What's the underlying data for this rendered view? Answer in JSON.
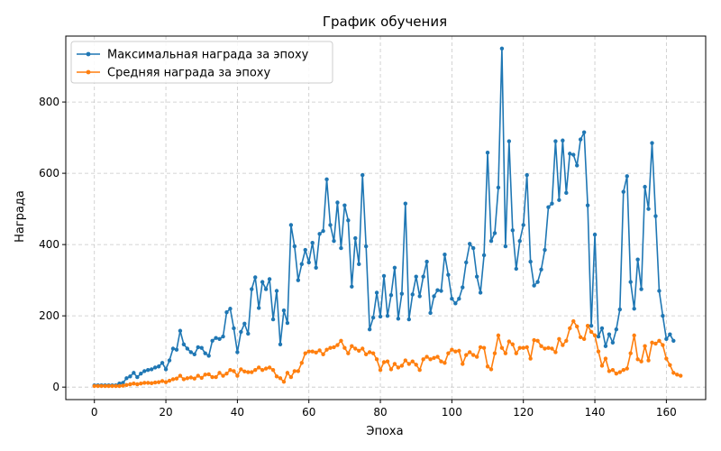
{
  "chart_data": {
    "type": "line",
    "title": "График обучения",
    "xlabel": "Эпоха",
    "ylabel": "Награда",
    "xlim": [
      -8,
      171
    ],
    "ylim": [
      -35,
      985
    ],
    "xticks": [
      0,
      20,
      40,
      60,
      80,
      100,
      120,
      140,
      160
    ],
    "yticks": [
      0,
      200,
      400,
      600,
      800
    ],
    "grid": true,
    "legend_position": "upper-left",
    "series": [
      {
        "name": "Максимальная награда за эпоху",
        "color": "#1f77b4",
        "values": [
          5,
          5,
          5,
          5,
          5,
          5,
          5,
          10,
          12,
          25,
          30,
          40,
          28,
          38,
          45,
          48,
          50,
          55,
          58,
          68,
          50,
          75,
          108,
          105,
          158,
          120,
          108,
          98,
          92,
          112,
          110,
          95,
          88,
          130,
          138,
          135,
          142,
          210,
          220,
          165,
          98,
          155,
          178,
          150,
          275,
          308,
          222,
          295,
          275,
          303,
          190,
          270,
          120,
          215,
          180,
          455,
          395,
          300,
          345,
          385,
          350,
          405,
          335,
          430,
          438,
          583,
          455,
          410,
          518,
          390,
          510,
          468,
          282,
          418,
          345,
          595,
          395,
          162,
          195,
          265,
          198,
          312,
          200,
          258,
          335,
          192,
          262,
          515,
          190,
          260,
          310,
          255,
          310,
          352,
          208,
          255,
          272,
          270,
          372,
          315,
          248,
          235,
          248,
          280,
          350,
          402,
          390,
          310,
          265,
          370,
          658,
          410,
          432,
          560,
          950,
          395,
          690,
          440,
          332,
          410,
          455,
          595,
          352,
          285,
          295,
          330,
          385,
          505,
          515,
          690,
          525,
          692,
          545,
          655,
          652,
          622,
          695,
          715,
          510,
          172,
          428,
          142,
          165,
          115,
          148,
          125,
          162,
          218,
          548,
          592,
          295,
          220,
          358,
          275,
          562,
          500,
          685,
          480,
          270,
          200,
          135,
          148,
          130
        ]
      },
      {
        "name": "Средняя награда за эпоху",
        "color": "#ff7f0e",
        "values": [
          3,
          3,
          3,
          3,
          3,
          3,
          3,
          3,
          4,
          6,
          8,
          10,
          8,
          10,
          12,
          12,
          11,
          13,
          14,
          17,
          14,
          18,
          22,
          24,
          32,
          22,
          25,
          27,
          24,
          32,
          26,
          35,
          36,
          28,
          28,
          40,
          32,
          38,
          48,
          45,
          32,
          50,
          44,
          42,
          42,
          48,
          55,
          48,
          52,
          55,
          48,
          30,
          25,
          15,
          40,
          28,
          45,
          45,
          68,
          95,
          100,
          100,
          97,
          103,
          92,
          105,
          110,
          112,
          118,
          130,
          110,
          95,
          115,
          108,
          102,
          108,
          92,
          98,
          95,
          78,
          48,
          70,
          72,
          50,
          65,
          55,
          60,
          75,
          65,
          72,
          63,
          48,
          78,
          85,
          78,
          82,
          85,
          72,
          68,
          95,
          105,
          100,
          102,
          65,
          90,
          98,
          90,
          85,
          112,
          110,
          58,
          50,
          95,
          145,
          110,
          95,
          128,
          120,
          95,
          110,
          110,
          112,
          80,
          132,
          130,
          115,
          108,
          110,
          108,
          98,
          135,
          118,
          130,
          165,
          185,
          170,
          140,
          135,
          172,
          155,
          145,
          100,
          60,
          80,
          45,
          48,
          38,
          42,
          48,
          52,
          95,
          145,
          78,
          72,
          115,
          75,
          125,
          122,
          130,
          118,
          80,
          62,
          40,
          35,
          32
        ]
      }
    ]
  }
}
